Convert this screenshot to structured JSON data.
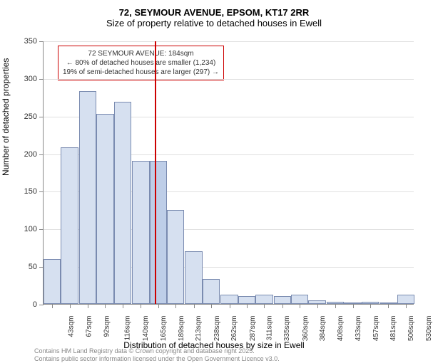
{
  "title_line1": "72, SEYMOUR AVENUE, EPSOM, KT17 2RR",
  "title_line2": "Size of property relative to detached houses in Ewell",
  "y_axis_title": "Number of detached properties",
  "x_axis_title": "Distribution of detached houses by size in Ewell",
  "footer_line1": "Contains HM Land Registry data © Crown copyright and database right 2025.",
  "footer_line2": "Contains public sector information licensed under the Open Government Licence v3.0.",
  "callout": {
    "line1": "72 SEYMOUR AVENUE: 184sqm",
    "line2": "← 80% of detached houses are smaller (1,234)",
    "line3": "19% of semi-detached houses are larger (297) →"
  },
  "chart": {
    "type": "histogram",
    "ylim": [
      0,
      350
    ],
    "ytick_step": 50,
    "bar_color": "#d6e0f0",
    "highlight_color": "#becee8",
    "bar_border": "#7a8bb0",
    "grid_color": "#e0e0e0",
    "marker_color": "#cc0000",
    "marker_x": 184,
    "x_categories": [
      "43sqm",
      "67sqm",
      "92sqm",
      "116sqm",
      "140sqm",
      "165sqm",
      "189sqm",
      "213sqm",
      "238sqm",
      "262sqm",
      "287sqm",
      "311sqm",
      "335sqm",
      "360sqm",
      "384sqm",
      "408sqm",
      "433sqm",
      "457sqm",
      "481sqm",
      "506sqm",
      "530sqm"
    ],
    "x_values": [
      43,
      67,
      92,
      116,
      140,
      165,
      189,
      213,
      238,
      262,
      287,
      311,
      335,
      360,
      384,
      408,
      433,
      457,
      481,
      506,
      530
    ],
    "values": [
      60,
      208,
      283,
      253,
      269,
      190,
      190,
      125,
      70,
      33,
      12,
      10,
      12,
      10,
      12,
      5,
      3,
      0,
      3,
      0,
      12
    ],
    "highlight_index": 6,
    "x_range": [
      31,
      542
    ]
  }
}
